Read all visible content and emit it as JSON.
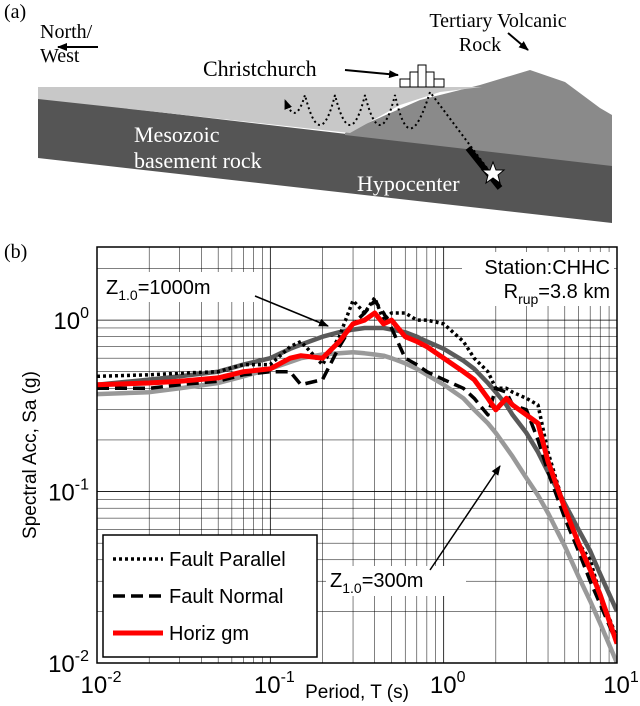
{
  "diagram": {
    "panel_label": "(a)",
    "north_west": [
      "North/",
      "West"
    ],
    "volcanic": [
      "Tertiary Volcanic",
      "Rock"
    ],
    "city": "Christchurch",
    "basement": [
      "Mesozoic",
      "basement rock"
    ],
    "hypocenter": "Hypocenter"
  },
  "chart_data": {
    "type": "line",
    "panel_label": "(b)",
    "x_label": "Period, T (s)",
    "y_label": "Spectral Acc, Sa (g)",
    "x_log": true,
    "y_log": true,
    "grid": true,
    "xlim": [
      0.01,
      10
    ],
    "ylim": [
      0.01,
      2.67
    ],
    "xticks": [
      {
        "value": 0.01,
        "base": "10",
        "exponent": "-2"
      },
      {
        "value": 0.1,
        "base": "10",
        "exponent": "-1"
      },
      {
        "value": 1,
        "base": "10",
        "exponent": "0"
      },
      {
        "value": 10,
        "base": "10",
        "exponent": "1"
      }
    ],
    "yticks": [
      {
        "value": 0.01,
        "base": "10",
        "exponent": "-2"
      },
      {
        "value": 0.1,
        "base": "10",
        "exponent": "-1"
      },
      {
        "value": 1,
        "base": "10",
        "exponent": "0"
      }
    ],
    "xminorticks": [
      0.02,
      0.03,
      0.04,
      0.05,
      0.06,
      0.07,
      0.08,
      0.09,
      0.2,
      0.3,
      0.4,
      0.5,
      0.6,
      0.7,
      0.8,
      0.9,
      2,
      3,
      4,
      5,
      6,
      7,
      8,
      9
    ],
    "yminorticks": [
      0.02,
      0.03,
      0.04,
      0.05,
      0.06,
      0.07,
      0.08,
      0.09,
      0.2,
      0.3,
      0.4,
      0.5,
      0.6,
      0.7,
      0.8,
      0.9,
      2
    ],
    "station": "Station:CHHC",
    "distance": {
      "text": "R",
      "subscript": "rup",
      "suffix": "=3.8 km"
    },
    "x": [
      0.01,
      0.02,
      0.03,
      0.05,
      0.07,
      0.1,
      0.13,
      0.15,
      0.2,
      0.25,
      0.3,
      0.35,
      0.4,
      0.45,
      0.5,
      0.6,
      0.7,
      0.8,
      1,
      1.3,
      1.5,
      1.8,
      2,
      2.3,
      2.5,
      3,
      3.5,
      4,
      5,
      6,
      7,
      8,
      10
    ],
    "legend": "lower left",
    "series": [
      {
        "name": "Fault Parallel",
        "color": "#000000",
        "line_style": "dotted",
        "values": [
          0.47,
          0.48,
          0.49,
          0.5,
          0.55,
          0.55,
          0.7,
          0.75,
          0.55,
          0.8,
          1.3,
          1.1,
          1.35,
          1.0,
          1.1,
          1.1,
          1.0,
          1.0,
          0.95,
          0.75,
          0.6,
          0.5,
          0.4,
          0.4,
          0.38,
          0.35,
          0.32,
          0.17,
          0.08,
          0.05,
          0.04,
          0.025,
          0.014
        ]
      },
      {
        "name": "Fault Normal",
        "color": "#000000",
        "line_style": "dashed",
        "values": [
          0.4,
          0.4,
          0.42,
          0.44,
          0.48,
          0.5,
          0.5,
          0.42,
          0.45,
          0.7,
          0.95,
          1.1,
          1.3,
          1.1,
          0.9,
          0.6,
          0.55,
          0.5,
          0.45,
          0.4,
          0.35,
          0.28,
          0.4,
          0.38,
          0.32,
          0.3,
          0.2,
          0.13,
          0.07,
          0.045,
          0.03,
          0.022,
          0.013
        ]
      },
      {
        "name": "Horiz gm",
        "color": "#ff0000",
        "line_style": "solid",
        "values": [
          0.42,
          0.43,
          0.44,
          0.46,
          0.5,
          0.52,
          0.6,
          0.62,
          0.6,
          0.75,
          0.95,
          1.0,
          1.1,
          0.95,
          1.0,
          0.8,
          0.75,
          0.7,
          0.6,
          0.5,
          0.45,
          0.35,
          0.3,
          0.35,
          0.32,
          0.28,
          0.25,
          0.15,
          0.08,
          0.05,
          0.035,
          0.025,
          0.013
        ]
      }
    ],
    "model_curves": [
      {
        "label": {
          "text": "Z",
          "subscript": "1.0",
          "suffix": "=1000m"
        },
        "color": "#5a5a5a",
        "values": [
          0.42,
          0.45,
          0.47,
          0.5,
          0.55,
          0.6,
          0.68,
          0.72,
          0.8,
          0.85,
          0.88,
          0.9,
          0.9,
          0.9,
          0.88,
          0.85,
          0.8,
          0.75,
          0.68,
          0.58,
          0.52,
          0.43,
          0.38,
          0.32,
          0.28,
          0.22,
          0.17,
          0.13,
          0.085,
          0.06,
          0.045,
          0.033,
          0.02
        ]
      },
      {
        "label": {
          "text": "Z",
          "subscript": "1.0",
          "suffix": "=300m"
        },
        "color": "#999999",
        "values": [
          0.37,
          0.38,
          0.4,
          0.43,
          0.47,
          0.52,
          0.57,
          0.6,
          0.63,
          0.64,
          0.65,
          0.64,
          0.63,
          0.62,
          0.6,
          0.56,
          0.52,
          0.48,
          0.42,
          0.35,
          0.3,
          0.25,
          0.22,
          0.18,
          0.16,
          0.12,
          0.095,
          0.075,
          0.048,
          0.032,
          0.023,
          0.017,
          0.01
        ]
      }
    ]
  }
}
